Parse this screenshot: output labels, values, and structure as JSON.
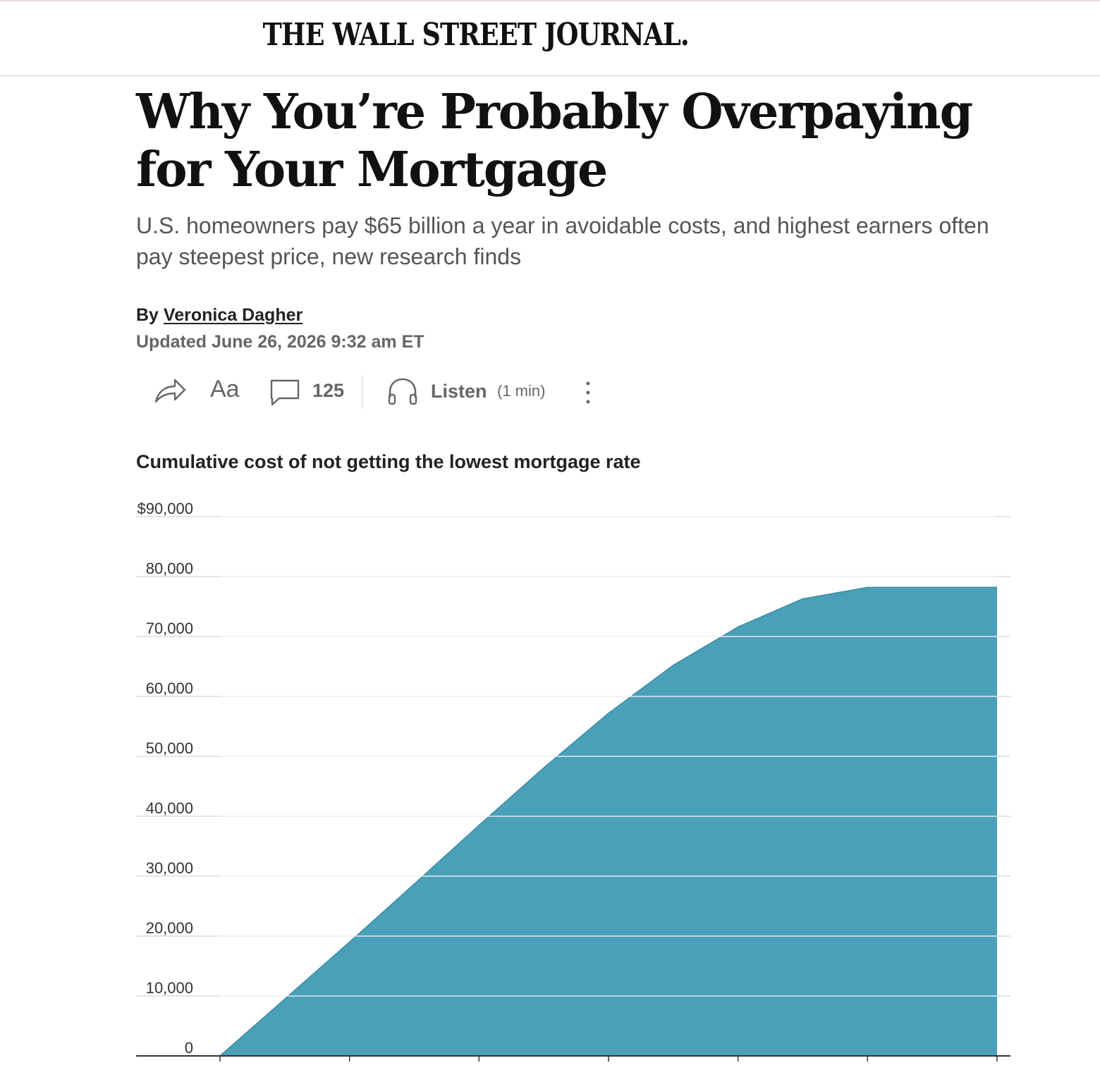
{
  "masthead": {
    "logo": "THE WALL STREET JOURNAL."
  },
  "article": {
    "headline": "Why You’re Probably Overpaying for Your Mortgage",
    "dek": "U.S. homeowners pay $65 billion a year in avoidable costs, and highest earners often pay steepest price, new research finds",
    "byline_prefix": "By",
    "author": "Veronica Dagher",
    "updated": "Updated June 26, 2026 9:32 am ET"
  },
  "toolbar": {
    "share_icon": "share-arrow-icon",
    "text_size_label": "Aa",
    "comment_icon": "comment-bubble-icon",
    "comment_count": "125",
    "listen_icon": "headphones-icon",
    "listen_label": "Listen",
    "listen_duration": "(1 min)",
    "more_icon": "vertical-ellipsis-icon"
  },
  "colors": {
    "area_fill": "#4aa0b9",
    "gridline": "#d6d6d6",
    "axis": "#333333",
    "muted_text": "#666666"
  },
  "chart_data": {
    "type": "area",
    "title": "Cumulative cost of not getting the lowest mortgage rate",
    "ylabel": "",
    "xlabel": "",
    "ylim": [
      0,
      90000
    ],
    "y_tick_labels": [
      "0",
      "10,000",
      "20,000",
      "30,000",
      "40,000",
      "50,000",
      "60,000",
      "70,000",
      "80,000",
      "$90,000"
    ],
    "y_ticks": [
      0,
      10000,
      20000,
      30000,
      40000,
      50000,
      60000,
      70000,
      80000,
      90000
    ],
    "x": [
      0,
      1,
      2,
      3,
      4,
      5,
      6,
      7,
      8,
      9,
      10,
      11,
      12
    ],
    "x_tick_positions": [
      0,
      2,
      4,
      6,
      8,
      10,
      12
    ],
    "x_tick_labels": [],
    "xlim": [
      0,
      12
    ],
    "values": [
      0,
      9500,
      19000,
      28700,
      38500,
      48100,
      57200,
      65200,
      71600,
      76300,
      78200,
      78200,
      78200
    ],
    "grid": true,
    "legend": "none"
  }
}
